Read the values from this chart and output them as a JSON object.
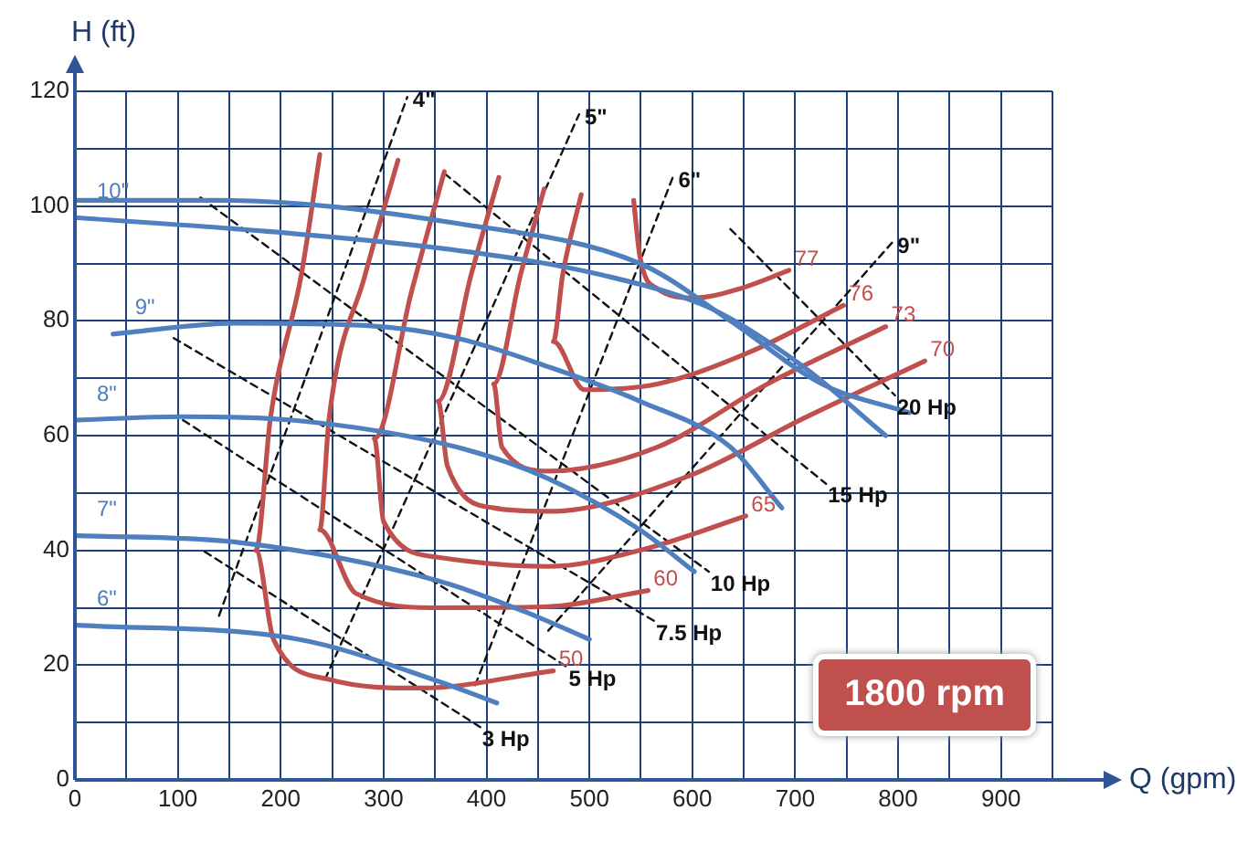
{
  "chart_data": {
    "type": "line",
    "xlabel": "Q (gpm)",
    "ylabel": "H (ft)",
    "xlim": [
      0,
      950
    ],
    "ylim": [
      0,
      120
    ],
    "xticks": [
      0,
      {
        "value": 50,
        "label": null
      },
      100,
      {
        "value": 150,
        "label": null
      },
      200,
      {
        "value": 250,
        "label": null
      },
      300,
      {
        "value": 350,
        "label": null
      },
      400,
      {
        "value": 450,
        "label": null
      },
      500,
      {
        "value": 550,
        "label": null
      },
      600,
      {
        "value": 650,
        "label": null
      },
      700,
      {
        "value": 750,
        "label": null
      },
      800,
      {
        "value": 850,
        "label": null
      },
      900,
      {
        "value": 950,
        "label": null
      }
    ],
    "yticks": [
      0,
      {
        "value": 10,
        "label": null
      },
      20,
      {
        "value": 30,
        "label": null
      },
      40,
      {
        "value": 50,
        "label": null
      },
      60,
      {
        "value": 70,
        "label": null
      },
      80,
      {
        "value": 90,
        "label": null
      },
      100,
      {
        "value": 110,
        "label": null
      },
      120
    ],
    "grid": true,
    "legend": false,
    "marker": "none",
    "annotations": [
      "1800 rpm"
    ],
    "series": [
      {
        "name": "10\"",
        "color": "#4f7fbf",
        "line_style": "solid",
        "x": [
          788,
          708,
          620,
          512,
          371,
          193,
          0
        ],
        "values": [
          60,
          72,
          82,
          88,
          92.3,
          95.5,
          98
        ]
      },
      {
        "color": "#4f7fbf",
        "line_style": "solid",
        "x": [
          811,
          726,
          637,
          549,
          371,
          140,
          0
        ],
        "values": [
          64,
          69,
          80,
          90,
          97,
          101,
          101
        ]
      },
      {
        "name": "9\"",
        "color": "#4f7fbf",
        "line_style": "solid",
        "x": [
          687,
          637,
          549,
          460,
          371,
          282,
          158,
          37
        ],
        "values": [
          47.4,
          58,
          66,
          72,
          77,
          79.2,
          79.6,
          77.7
        ]
      },
      {
        "name": "8\"",
        "color": "#4f7fbf",
        "line_style": "solid",
        "x": [
          602,
          549,
          460,
          371,
          211,
          105,
          0
        ],
        "values": [
          36.3,
          43.6,
          52.5,
          58,
          62.7,
          63.3,
          62.7
        ]
      },
      {
        "name": "7\"",
        "color": "#4f7fbf",
        "line_style": "solid",
        "x": [
          500,
          447,
          353,
          158,
          0
        ],
        "values": [
          24.5,
          28.6,
          34.7,
          41.4,
          42.6
        ]
      },
      {
        "name": "6\"",
        "color": "#4f7fbf",
        "line_style": "solid",
        "x": [
          410,
          353,
          217,
          0
        ],
        "values": [
          13.4,
          17.2,
          24.5,
          27
        ]
      },
      {
        "name": "50",
        "color": "#c0504d",
        "line_style": "solid",
        "x": [
          238,
          220,
          190,
          176,
          193,
          247,
          336,
          465
        ],
        "values": [
          109,
          88,
          63,
          40,
          24.5,
          17.5,
          16,
          19
        ]
      },
      {
        "name": "60",
        "color": "#c0504d",
        "line_style": "solid",
        "x": [
          314,
          282,
          247,
          238,
          273,
          353,
          460,
          557
        ],
        "values": [
          108,
          88,
          63,
          43.6,
          32.5,
          30,
          30.2,
          33
        ]
      },
      {
        "name": "65",
        "color": "#c0504d",
        "line_style": "solid",
        "x": [
          359,
          327,
          291,
          300,
          353,
          460,
          557,
          652
        ],
        "values": [
          106,
          85,
          59.5,
          45,
          38.8,
          37.2,
          40.4,
          46
        ]
      },
      {
        "name": "70",
        "color": "#c0504d",
        "line_style": "solid",
        "x": [
          412,
          385,
          353,
          362,
          407,
          460,
          597,
          708,
          826
        ],
        "values": [
          105,
          88,
          66,
          54.7,
          47.4,
          46.8,
          53,
          63,
          73
        ]
      },
      {
        "name": "73",
        "color": "#c0504d",
        "line_style": "solid",
        "x": [
          456,
          433,
          407,
          415,
          460,
          566,
          673,
          788
        ],
        "values": [
          103,
          88,
          69,
          58,
          53.8,
          58,
          69,
          79
        ]
      },
      {
        "name": "76",
        "color": "#c0504d",
        "line_style": "solid",
        "x": [
          492,
          474,
          465,
          495,
          566,
          655,
          747
        ],
        "values": [
          102,
          88,
          76.4,
          68,
          69,
          74.5,
          82.7
        ]
      },
      {
        "name": "77",
        "color": "#c0504d",
        "line_style": "solid",
        "x": [
          543,
          549,
          566,
          602,
          646,
          694
        ],
        "values": [
          101,
          91.3,
          85.6,
          84,
          85.6,
          88.8
        ]
      },
      {
        "name": "3 Hp",
        "color": "#111111",
        "line_style": "dashed",
        "x": [
          126,
          394
        ],
        "values": [
          39.8,
          9.2
        ]
      },
      {
        "name": "5 Hp",
        "color": "#111111",
        "line_style": "dashed",
        "x": [
          105,
          478
        ],
        "values": [
          62.7,
          19.7
        ]
      },
      {
        "name": "7.5 Hp",
        "color": "#111111",
        "line_style": "dashed",
        "x": [
          96,
          563
        ],
        "values": [
          77,
          27.7
        ]
      },
      {
        "name": "10 Hp",
        "color": "#111111",
        "line_style": "dashed",
        "x": [
          122,
          616
        ],
        "values": [
          101.5,
          36.3
        ]
      },
      {
        "name": "15 Hp",
        "color": "#111111",
        "line_style": "dashed",
        "x": [
          359,
          730
        ],
        "values": [
          105.7,
          51.6
        ]
      },
      {
        "name": "20 Hp",
        "color": "#111111",
        "line_style": "dashed",
        "x": [
          637,
          797
        ],
        "values": [
          96,
          67
        ]
      },
      {
        "name": "4\"",
        "color": "#111111",
        "line_style": "dashed",
        "x": [
          140,
          323
        ],
        "values": [
          28.6,
          119
        ]
      },
      {
        "name": "5\"",
        "color": "#111111",
        "line_style": "dashed",
        "x": [
          243,
          490
        ],
        "values": [
          17.5,
          116
        ]
      },
      {
        "name": "6\"",
        "color": "#111111",
        "line_style": "dashed",
        "x": [
          389,
          581
        ],
        "values": [
          16.5,
          105
        ]
      },
      {
        "name": "9\"",
        "color": "#111111",
        "line_style": "dashed",
        "x": [
          460,
          794
        ],
        "values": [
          26,
          93.6
        ]
      }
    ]
  }
}
